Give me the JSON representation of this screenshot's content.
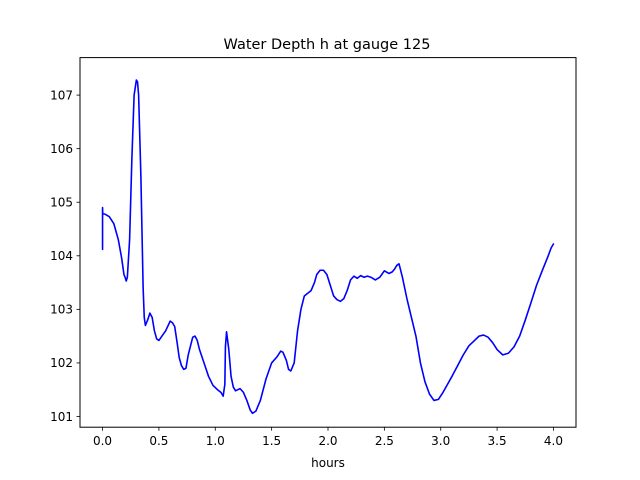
{
  "chart_data": {
    "type": "line",
    "title": "Water Depth h at gauge 125",
    "xlabel": "hours",
    "ylabel": "",
    "xlim": [
      -0.2,
      4.2
    ],
    "ylim": [
      100.8,
      107.7
    ],
    "xticks": [
      0.0,
      0.5,
      1.0,
      1.5,
      2.0,
      2.5,
      3.0,
      3.5,
      4.0
    ],
    "xtick_labels": [
      "0.0",
      "0.5",
      "1.0",
      "1.5",
      "2.0",
      "2.5",
      "3.0",
      "3.5",
      "4.0"
    ],
    "yticks": [
      101,
      102,
      103,
      104,
      105,
      106,
      107
    ],
    "ytick_labels": [
      "101",
      "102",
      "103",
      "104",
      "105",
      "106",
      "107"
    ],
    "grid": false,
    "series": [
      {
        "color": "#0000ff",
        "x": [
          0.0,
          0.0,
          0.002,
          0.02,
          0.06,
          0.1,
          0.14,
          0.17,
          0.19,
          0.2,
          0.21,
          0.22,
          0.24,
          0.26,
          0.28,
          0.3,
          0.31,
          0.32,
          0.34,
          0.36,
          0.37,
          0.38,
          0.39,
          0.4,
          0.42,
          0.44,
          0.46,
          0.48,
          0.5,
          0.52,
          0.56,
          0.6,
          0.62,
          0.64,
          0.66,
          0.68,
          0.7,
          0.72,
          0.74,
          0.76,
          0.8,
          0.82,
          0.84,
          0.86,
          0.9,
          0.94,
          0.98,
          1.02,
          1.05,
          1.07,
          1.085,
          1.09,
          1.1,
          1.12,
          1.14,
          1.16,
          1.18,
          1.2,
          1.22,
          1.25,
          1.28,
          1.31,
          1.33,
          1.36,
          1.4,
          1.45,
          1.5,
          1.55,
          1.58,
          1.6,
          1.63,
          1.65,
          1.67,
          1.7,
          1.73,
          1.76,
          1.79,
          1.82,
          1.85,
          1.88,
          1.9,
          1.93,
          1.96,
          1.99,
          2.02,
          2.05,
          2.08,
          2.11,
          2.14,
          2.17,
          2.2,
          2.23,
          2.26,
          2.29,
          2.32,
          2.35,
          2.38,
          2.42,
          2.46,
          2.5,
          2.54,
          2.57,
          2.59,
          2.61,
          2.63,
          2.66,
          2.7,
          2.74,
          2.78,
          2.82,
          2.86,
          2.9,
          2.94,
          2.98,
          3.02,
          3.06,
          3.1,
          3.15,
          3.2,
          3.25,
          3.3,
          3.34,
          3.38,
          3.42,
          3.46,
          3.5,
          3.55,
          3.6,
          3.65,
          3.7,
          3.75,
          3.8,
          3.85,
          3.9,
          3.95,
          3.98,
          4.0
        ],
        "y": [
          104.12,
          104.9,
          104.78,
          104.78,
          104.73,
          104.6,
          104.3,
          103.95,
          103.65,
          103.6,
          103.53,
          103.6,
          104.3,
          105.8,
          107.0,
          107.28,
          107.25,
          107.0,
          105.5,
          103.4,
          102.85,
          102.7,
          102.75,
          102.8,
          102.93,
          102.85,
          102.6,
          102.45,
          102.42,
          102.48,
          102.6,
          102.78,
          102.75,
          102.68,
          102.4,
          102.1,
          101.95,
          101.88,
          101.9,
          102.15,
          102.48,
          102.5,
          102.42,
          102.25,
          102.0,
          101.75,
          101.58,
          101.5,
          101.45,
          101.38,
          101.6,
          102.3,
          102.58,
          102.25,
          101.75,
          101.55,
          101.48,
          101.5,
          101.52,
          101.45,
          101.3,
          101.12,
          101.06,
          101.1,
          101.3,
          101.7,
          102.0,
          102.12,
          102.22,
          102.2,
          102.05,
          101.88,
          101.85,
          102.0,
          102.6,
          103.0,
          103.25,
          103.3,
          103.35,
          103.5,
          103.65,
          103.73,
          103.73,
          103.65,
          103.45,
          103.25,
          103.18,
          103.15,
          103.2,
          103.35,
          103.55,
          103.62,
          103.58,
          103.63,
          103.6,
          103.62,
          103.6,
          103.55,
          103.6,
          103.72,
          103.67,
          103.7,
          103.75,
          103.82,
          103.85,
          103.6,
          103.2,
          102.85,
          102.5,
          102.0,
          101.65,
          101.42,
          101.3,
          101.32,
          101.45,
          101.6,
          101.75,
          101.95,
          102.15,
          102.32,
          102.42,
          102.5,
          102.52,
          102.48,
          102.38,
          102.25,
          102.15,
          102.18,
          102.3,
          102.5,
          102.8,
          103.12,
          103.45,
          103.72,
          103.98,
          104.15,
          104.22
        ]
      }
    ]
  }
}
